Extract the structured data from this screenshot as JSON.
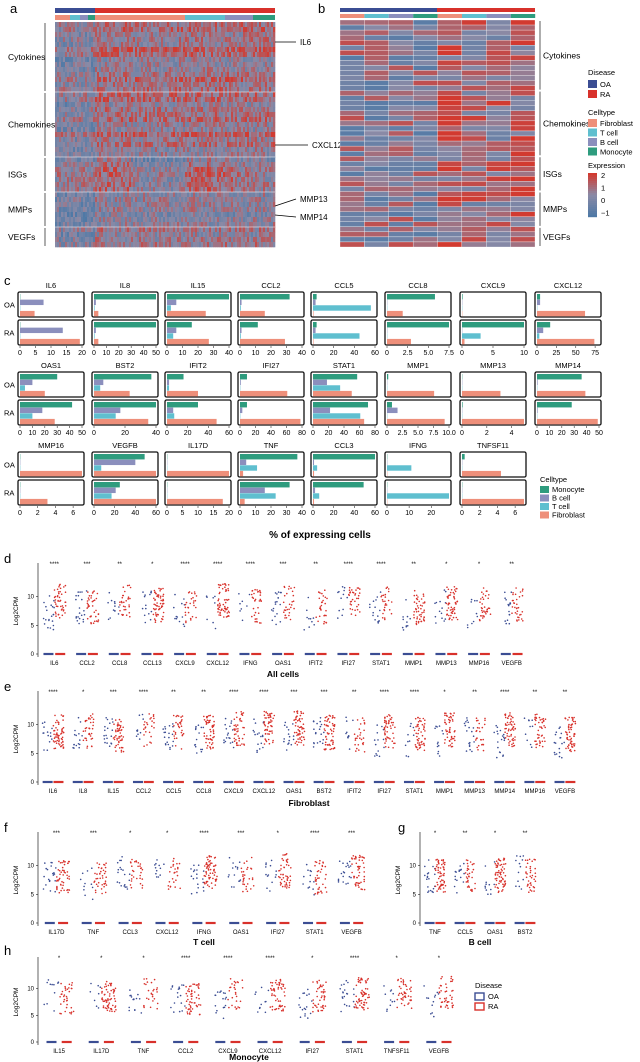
{
  "panels": {
    "a": "a",
    "b": "b",
    "c": "c",
    "d": "d",
    "e": "e",
    "f": "f",
    "g": "g",
    "h": "h"
  },
  "colors": {
    "OA": "#3b4d93",
    "RA": "#d8312b",
    "Monocyte": "#2e9c7e",
    "B cell": "#8b8fbd",
    "T cell": "#5fbfcf",
    "Fibroblast": "#ee8f7a",
    "heat_low": "#4f79a6",
    "heat_mid": "#8a8aa6",
    "heat_high": "#d23a30"
  },
  "heatmap": {
    "groups": [
      "Cytokines",
      "Chemokines",
      "ISGs",
      "MMPs",
      "VEGFs"
    ],
    "callouts": [
      "IL6",
      "CXCL12",
      "MMP13",
      "MMP14"
    ]
  },
  "legend_top": {
    "disease_title": "Disease",
    "disease": [
      "OA",
      "RA"
    ],
    "celltype_title": "Celltype",
    "celltype": [
      "Fibroblast",
      "T cell",
      "B cell",
      "Monocyte"
    ],
    "expression_title": "Expression",
    "expression_ticks": [
      "2",
      "1",
      "0",
      "−1"
    ]
  },
  "chart_data": [
    {
      "panel": "c",
      "type": "bar",
      "xlabel": "% of expressing cells",
      "rows": [
        "OA",
        "RA"
      ],
      "series_order": [
        "Monocyte",
        "B cell",
        "T cell",
        "Fibroblast"
      ],
      "legend_title": "Celltype",
      "legend": [
        "Monocyte",
        "B cell",
        "T cell",
        "Fibroblast"
      ],
      "genes": [
        {
          "gene": "IL6",
          "ticks": [
            "0",
            "5",
            "10",
            "15",
            "20"
          ],
          "max": 20,
          "OA": [
            0,
            7.6,
            0,
            4.7
          ],
          "RA": [
            0,
            13.8,
            0,
            19.3
          ]
        },
        {
          "gene": "IL8",
          "ticks": [
            "0",
            "10",
            "20",
            "30",
            "40",
            "50"
          ],
          "max": 50,
          "OA": [
            52,
            1.5,
            0.5,
            3.5
          ],
          "RA": [
            52,
            1.5,
            0.5,
            3.5
          ]
        },
        {
          "gene": "IL15",
          "ticks": [
            "0",
            "10",
            "20",
            "30",
            "40"
          ],
          "max": 40,
          "OA": [
            45,
            6,
            2.5,
            25
          ],
          "RA": [
            16,
            6,
            4,
            27
          ]
        },
        {
          "gene": "CCL2",
          "ticks": [
            "0",
            "10",
            "20",
            "30",
            "40"
          ],
          "max": 40,
          "OA": [
            32,
            1,
            0.5,
            16
          ],
          "RA": [
            11.5,
            1,
            0.5,
            29
          ]
        },
        {
          "gene": "CCL5",
          "ticks": [
            "0",
            "20",
            "40",
            "60"
          ],
          "max": 60,
          "OA": [
            3.5,
            2.5,
            56,
            0.5
          ],
          "RA": [
            3.5,
            2.5,
            45,
            0.5
          ]
        },
        {
          "gene": "CCL8",
          "ticks": [
            "0",
            "2.5",
            "5.0",
            "7.5"
          ],
          "max": 7.5,
          "OA": [
            5.8,
            0,
            0,
            1.9
          ],
          "RA": [
            8.7,
            0,
            0,
            2.9
          ]
        },
        {
          "gene": "CXCL9",
          "ticks": [
            "0",
            "5",
            "10"
          ],
          "max": 10,
          "OA": [
            0.1,
            0,
            0,
            0
          ],
          "RA": [
            11,
            0,
            3,
            0.4
          ]
        },
        {
          "gene": "CXCL12",
          "ticks": [
            "0",
            "25",
            "50",
            "75"
          ],
          "max": 80,
          "OA": [
            4,
            4,
            0,
            62
          ],
          "RA": [
            17,
            8,
            3,
            74
          ]
        },
        {
          "gene": "OAS1",
          "ticks": [
            "0",
            "10",
            "20",
            "30",
            "40",
            "50"
          ],
          "max": 50,
          "OA": [
            30,
            10,
            4,
            20
          ],
          "RA": [
            42,
            18,
            10,
            28
          ]
        },
        {
          "gene": "BST2",
          "ticks": [
            "0",
            "20",
            "40"
          ],
          "max": 40,
          "OA": [
            37,
            6,
            4,
            23
          ],
          "RA": [
            44,
            17,
            14,
            35
          ]
        },
        {
          "gene": "IFIT2",
          "ticks": [
            "0",
            "20",
            "40",
            "60"
          ],
          "max": 60,
          "OA": [
            16,
            2,
            2,
            30
          ],
          "RA": [
            30,
            6,
            7,
            48
          ]
        },
        {
          "gene": "IFI27",
          "ticks": [
            "0",
            "20",
            "40",
            "60",
            "80"
          ],
          "max": 80,
          "OA": [
            9,
            1,
            0,
            61
          ],
          "RA": [
            9,
            3,
            0,
            78
          ]
        },
        {
          "gene": "STAT1",
          "ticks": [
            "0",
            "20",
            "40",
            "60",
            "80"
          ],
          "max": 80,
          "OA": [
            57,
            18,
            35,
            50
          ],
          "RA": [
            71,
            22,
            61,
            66
          ]
        },
        {
          "gene": "MMP1",
          "ticks": [
            "0",
            "2.5",
            "5.0",
            "7.5",
            "10.0"
          ],
          "max": 10,
          "OA": [
            0.2,
            0,
            0,
            7.6
          ],
          "RA": [
            0.8,
            1.7,
            0,
            9.3
          ]
        },
        {
          "gene": "MMP13",
          "ticks": [
            "0",
            "2",
            "4"
          ],
          "max": 5,
          "OA": [
            0,
            0,
            0,
            3.1
          ],
          "RA": [
            0.05,
            0,
            0,
            5
          ]
        },
        {
          "gene": "MMP14",
          "ticks": [
            "0",
            "10",
            "20",
            "30",
            "40",
            "50"
          ],
          "max": 50,
          "OA": [
            36,
            0.5,
            0,
            39
          ],
          "RA": [
            28,
            0.5,
            0,
            49
          ]
        },
        {
          "gene": "MMP16",
          "ticks": [
            "0",
            "2",
            "4",
            "6"
          ],
          "max": 7,
          "OA": [
            0,
            0,
            0,
            7.2
          ],
          "RA": [
            0,
            0,
            0,
            3.1
          ]
        },
        {
          "gene": "VEGFB",
          "ticks": [
            "0",
            "20",
            "40",
            "60"
          ],
          "max": 60,
          "OA": [
            49,
            40,
            7,
            67
          ],
          "RA": [
            25,
            21,
            17,
            64
          ]
        },
        {
          "gene": "IL17D",
          "ticks": [
            "0",
            "5",
            "10",
            "15",
            "20"
          ],
          "max": 20,
          "OA": [
            0,
            0,
            0,
            22.5
          ],
          "RA": [
            0,
            0,
            0,
            18
          ]
        },
        {
          "gene": "TNF",
          "ticks": [
            "0",
            "10",
            "20",
            "30",
            "40"
          ],
          "max": 40,
          "OA": [
            37,
            4,
            11,
            2
          ],
          "RA": [
            32,
            16,
            23,
            3
          ]
        },
        {
          "gene": "CCL3",
          "ticks": [
            "0",
            "20",
            "40",
            "60"
          ],
          "max": 60,
          "OA": [
            63,
            1,
            4,
            1
          ],
          "RA": [
            49,
            2,
            6,
            1
          ]
        },
        {
          "gene": "IFNG",
          "ticks": [
            "0",
            "10",
            "20"
          ],
          "max": 28,
          "OA": [
            0,
            0,
            11,
            0
          ],
          "RA": [
            0,
            0,
            28,
            0
          ]
        },
        {
          "gene": "TNFSF11",
          "ticks": [
            "0",
            "2",
            "4",
            "6"
          ],
          "max": 7,
          "OA": [
            0.3,
            0,
            0,
            4.4
          ],
          "RA": [
            0,
            0,
            0,
            7.5
          ]
        }
      ]
    },
    {
      "panel": "d",
      "type": "scatter",
      "ylabel": "Log2CPM",
      "xlabel": "All cells",
      "yticks": [
        "0",
        "5",
        "10"
      ],
      "ylim": [
        0,
        15
      ],
      "genes": [
        "IL6",
        "CCL2",
        "CCL8",
        "CCL13",
        "CXCL9",
        "CXCL12",
        "IFNG",
        "OAS1",
        "IFIT2",
        "IFI27",
        "STAT1",
        "MMP1",
        "MMP13",
        "MMP16",
        "VEGFB"
      ],
      "sig": [
        "****",
        "***",
        "**",
        "*",
        "****",
        "****",
        "****",
        "***",
        "**",
        "****",
        "****",
        "**",
        "*",
        "*",
        "**"
      ],
      "boxes": {
        "OA": [
          0,
          0,
          0,
          0,
          0,
          0,
          0,
          0,
          0,
          0,
          0,
          0,
          0,
          0,
          0
        ],
        "RA": [
          0,
          0,
          0,
          0,
          0,
          0,
          0,
          0,
          0,
          0,
          0,
          0,
          0,
          0,
          0
        ]
      }
    },
    {
      "panel": "e",
      "type": "scatter",
      "ylabel": "Log2CPM",
      "xlabel": "Fibroblast",
      "yticks": [
        "0",
        "5",
        "10"
      ],
      "ylim": [
        0,
        15
      ],
      "genes": [
        "IL6",
        "IL8",
        "IL15",
        "CCL2",
        "CCL5",
        "CCL8",
        "CXCL9",
        "CXCL12",
        "OAS1",
        "BST2",
        "IFIT2",
        "IFI27",
        "STAT1",
        "MMP1",
        "MMP13",
        "MMP14",
        "MMP16",
        "VEGFB"
      ],
      "sig": [
        "****",
        "*",
        "***",
        "****",
        "**",
        "**",
        "****",
        "****",
        "***",
        "***",
        "**",
        "****",
        "****",
        "*",
        "**",
        "****",
        "**",
        "**"
      ]
    },
    {
      "panel": "f",
      "type": "scatter",
      "ylabel": "Log2CPM",
      "xlabel": "T cell",
      "yticks": [
        "0",
        "5",
        "10"
      ],
      "ylim": [
        0,
        15
      ],
      "genes": [
        "IL17D",
        "TNF",
        "CCL3",
        "CXCL12",
        "IFNG",
        "OAS1",
        "IFI27",
        "STAT1",
        "VEGFB"
      ],
      "sig": [
        "***",
        "***",
        "*",
        "*",
        "****",
        "***",
        "*",
        "****",
        "***"
      ]
    },
    {
      "panel": "g",
      "type": "scatter",
      "ylabel": "Log2CPM",
      "xlabel": "B cell",
      "yticks": [
        "0",
        "5",
        "10"
      ],
      "ylim": [
        0,
        15
      ],
      "genes": [
        "TNF",
        "CCL5",
        "OAS1",
        "BST2"
      ],
      "sig": [
        "*",
        "**",
        "*",
        "**"
      ]
    },
    {
      "panel": "h",
      "type": "scatter",
      "ylabel": "Log2CPM",
      "xlabel": "Monocyte",
      "yticks": [
        "0",
        "5",
        "10"
      ],
      "ylim": [
        0,
        15
      ],
      "genes": [
        "IL15",
        "IL17D",
        "TNF",
        "CCL2",
        "CXCL9",
        "CXCL12",
        "IFI27",
        "STAT1",
        "TNFSF11",
        "VEGFB"
      ],
      "sig": [
        "*",
        "*",
        "*",
        "****",
        "****",
        "****",
        "*",
        "****",
        "*",
        "*"
      ],
      "legend_title": "Disease",
      "legend": [
        "OA",
        "RA"
      ]
    }
  ]
}
